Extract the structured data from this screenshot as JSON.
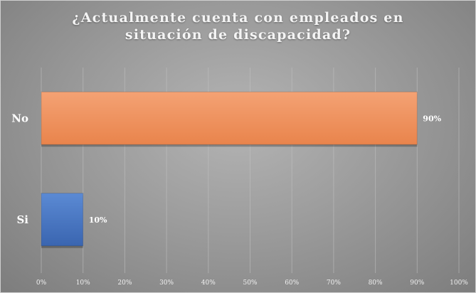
{
  "chart_data": {
    "type": "bar",
    "orientation": "horizontal",
    "title": "¿Actualmente cuenta con empleados en situación de discapacidad?",
    "categories": [
      "No",
      "Si"
    ],
    "values": [
      90,
      10
    ],
    "data_labels": [
      "90%",
      "10%"
    ],
    "xlim": [
      0,
      100
    ],
    "xticks": [
      0,
      10,
      20,
      30,
      40,
      50,
      60,
      70,
      80,
      90,
      100
    ],
    "xtick_labels": [
      "0%",
      "10%",
      "20%",
      "30%",
      "40%",
      "50%",
      "60%",
      "70%",
      "80%",
      "90%",
      "100%"
    ],
    "bar_colors": [
      "#f0955f",
      "#4a78c4"
    ],
    "grid": true,
    "legend": "none"
  }
}
